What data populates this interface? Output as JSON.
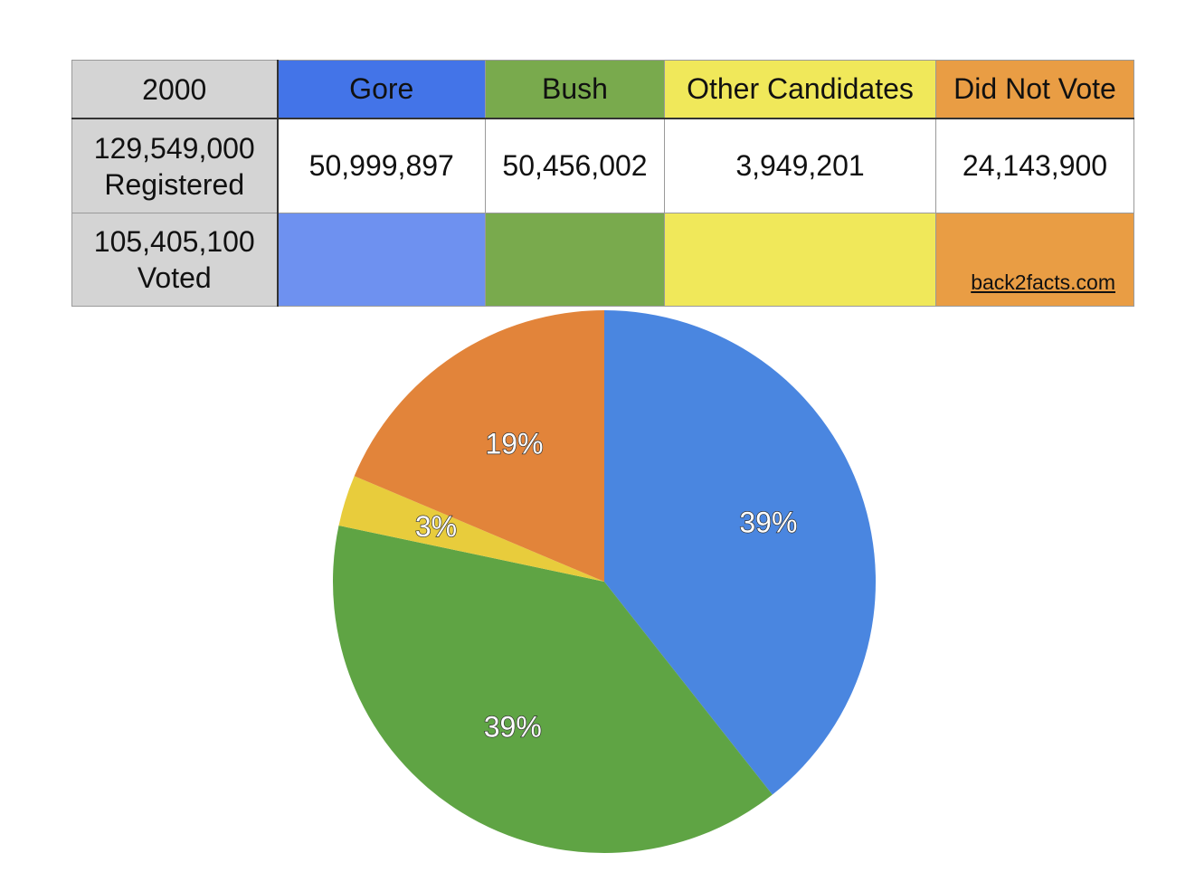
{
  "table": {
    "corner": "2000",
    "headers": [
      {
        "label": "Gore",
        "color": "#4374e8"
      },
      {
        "label": "Bush",
        "color": "#79aa4d"
      },
      {
        "label": "Other Candidates",
        "color": "#f0e85a"
      },
      {
        "label": "Did Not Vote",
        "color": "#e99d44"
      }
    ],
    "row1": {
      "label_number": "129,549,000",
      "label_text": "Registered",
      "values": [
        "50,999,897",
        "50,456,002",
        "3,949,201",
        "24,143,900"
      ]
    },
    "row2": {
      "label_number": "105,405,100",
      "label_text": "Voted",
      "swatch_colors": [
        "#6e91f0",
        "#79aa4d",
        "#f0e85a",
        "#e99d44"
      ]
    },
    "credit": "back2facts.com"
  },
  "chart_data": {
    "type": "pie",
    "slices": [
      {
        "name": "Gore",
        "value": 50999897,
        "label": "39%",
        "color": "#4a86e0"
      },
      {
        "name": "Bush",
        "value": 50456002,
        "label": "39%",
        "color": "#5fa444"
      },
      {
        "name": "Other Candidates",
        "value": 3949201,
        "label": "3%",
        "color": "#e8cc3c"
      },
      {
        "name": "Did Not Vote",
        "value": 24143900,
        "label": "19%",
        "color": "#e2843a"
      }
    ]
  }
}
